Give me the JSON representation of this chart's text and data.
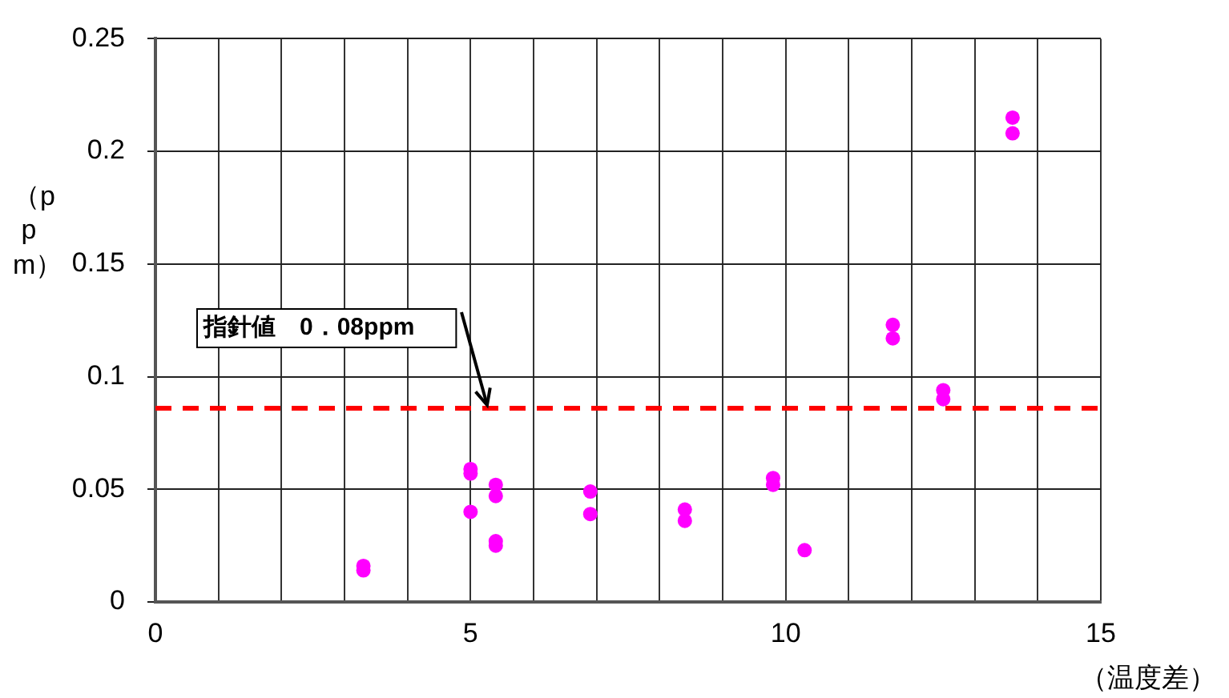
{
  "chart_data": {
    "type": "scatter",
    "xlabel": "（温度差）",
    "ylabel": "（ppm）",
    "x": [
      3.3,
      3.3,
      5,
      5,
      5,
      5.4,
      5.4,
      5.4,
      5.4,
      6.9,
      6.9,
      8.4,
      8.4,
      9.8,
      9.8,
      10.3,
      11.7,
      11.7,
      12.5,
      12.5,
      13.6,
      13.6
    ],
    "series": [
      {
        "color": "#ff00ff",
        "values": [
          0.016,
          0.014,
          0.059,
          0.057,
          0.04,
          0.052,
          0.047,
          0.027,
          0.025,
          0.049,
          0.039,
          0.041,
          0.036,
          0.055,
          0.052,
          0.023,
          0.123,
          0.117,
          0.094,
          0.09,
          0.215,
          0.208
        ]
      }
    ],
    "xlim": [
      0,
      15
    ],
    "xticks": [
      0,
      {
        "value": 1,
        "label": null
      },
      {
        "value": 2,
        "label": null
      },
      {
        "value": 3,
        "label": null
      },
      {
        "value": 4,
        "label": null
      },
      5,
      {
        "value": 6,
        "label": null
      },
      {
        "value": 7,
        "label": null
      },
      {
        "value": 8,
        "label": null
      },
      {
        "value": 9,
        "label": null
      },
      10,
      {
        "value": 11,
        "label": null
      },
      {
        "value": 12,
        "label": null
      },
      {
        "value": 13,
        "label": null
      },
      {
        "value": 14,
        "label": null
      },
      15
    ],
    "ylim": [
      0,
      0.25
    ],
    "yticks": [
      0,
      0.05,
      0.1,
      0.15,
      0.2,
      0.25
    ],
    "ref_lines": [
      {
        "axis": "y",
        "value": 0.086,
        "label": "指針値　0．08ppm",
        "color": "#ff0000",
        "line_style": "dashed"
      }
    ],
    "grid": true,
    "legend": false,
    "marker": "circle"
  }
}
